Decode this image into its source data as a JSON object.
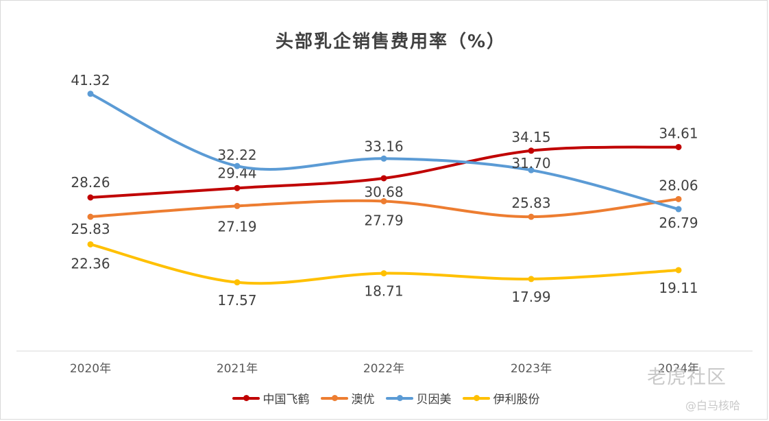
{
  "chart_data": {
    "type": "line",
    "title": "头部乳企销售费用率（%）",
    "categories": [
      "2020年",
      "2021年",
      "2022年",
      "2023年",
      "2024年"
    ],
    "series": [
      {
        "name": "中国飞鹤",
        "color": "#c00000",
        "values": [
          28.26,
          29.44,
          30.68,
          34.15,
          34.61
        ]
      },
      {
        "name": "澳优",
        "color": "#ed7d31",
        "values": [
          25.83,
          27.19,
          27.79,
          25.83,
          28.06
        ]
      },
      {
        "name": "贝因美",
        "color": "#5b9bd5",
        "values": [
          41.32,
          32.22,
          33.16,
          31.7,
          26.79
        ]
      },
      {
        "name": "伊利股份",
        "color": "#ffc000",
        "values": [
          22.36,
          17.57,
          18.71,
          17.99,
          19.11
        ]
      }
    ],
    "xlabel": "",
    "ylabel": "",
    "legend_position": "bottom",
    "smooth": true,
    "grid": false
  },
  "watermark": {
    "main": "老虎社区",
    "sub": "@白马核哈"
  }
}
